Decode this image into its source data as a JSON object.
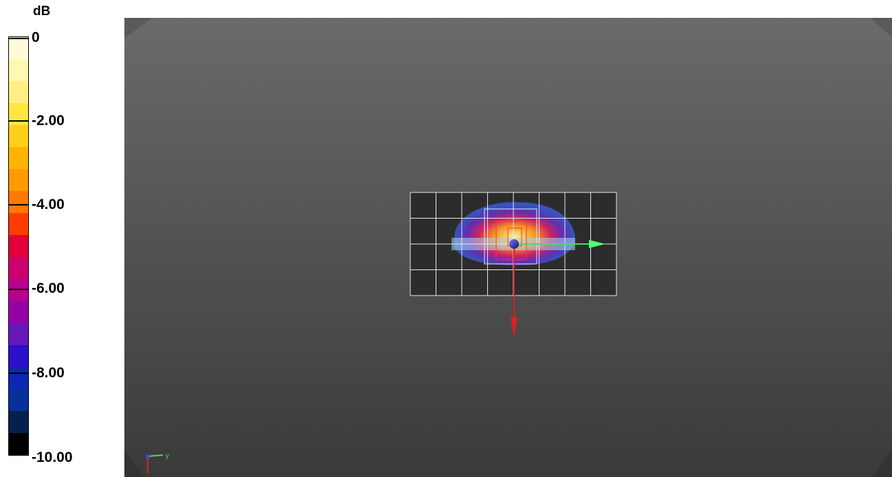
{
  "legend": {
    "unit": "dB",
    "labels": [
      "0",
      "-2.00",
      "-4.00",
      "-6.00",
      "-8.00",
      "-10.00"
    ],
    "colors": [
      "#fffbd9",
      "#fff8b3",
      "#ffef84",
      "#ffe640",
      "#ffd01a",
      "#ffb400",
      "#ff9a00",
      "#ff7800",
      "#ff3c00",
      "#e40038",
      "#cc006e",
      "#b8008e",
      "#9600a8",
      "#6818b8",
      "#2a10c8",
      "#0c28b0",
      "#08309a",
      "#04204e",
      "#000000"
    ]
  },
  "viewport": {
    "background_top": "#6a6a6a",
    "background_bottom": "#3a3a3a",
    "grid_color": "#e8e8e8",
    "axis_x_color": "#e02020",
    "axis_y_color": "#40e060",
    "triad_y_label": "y"
  }
}
